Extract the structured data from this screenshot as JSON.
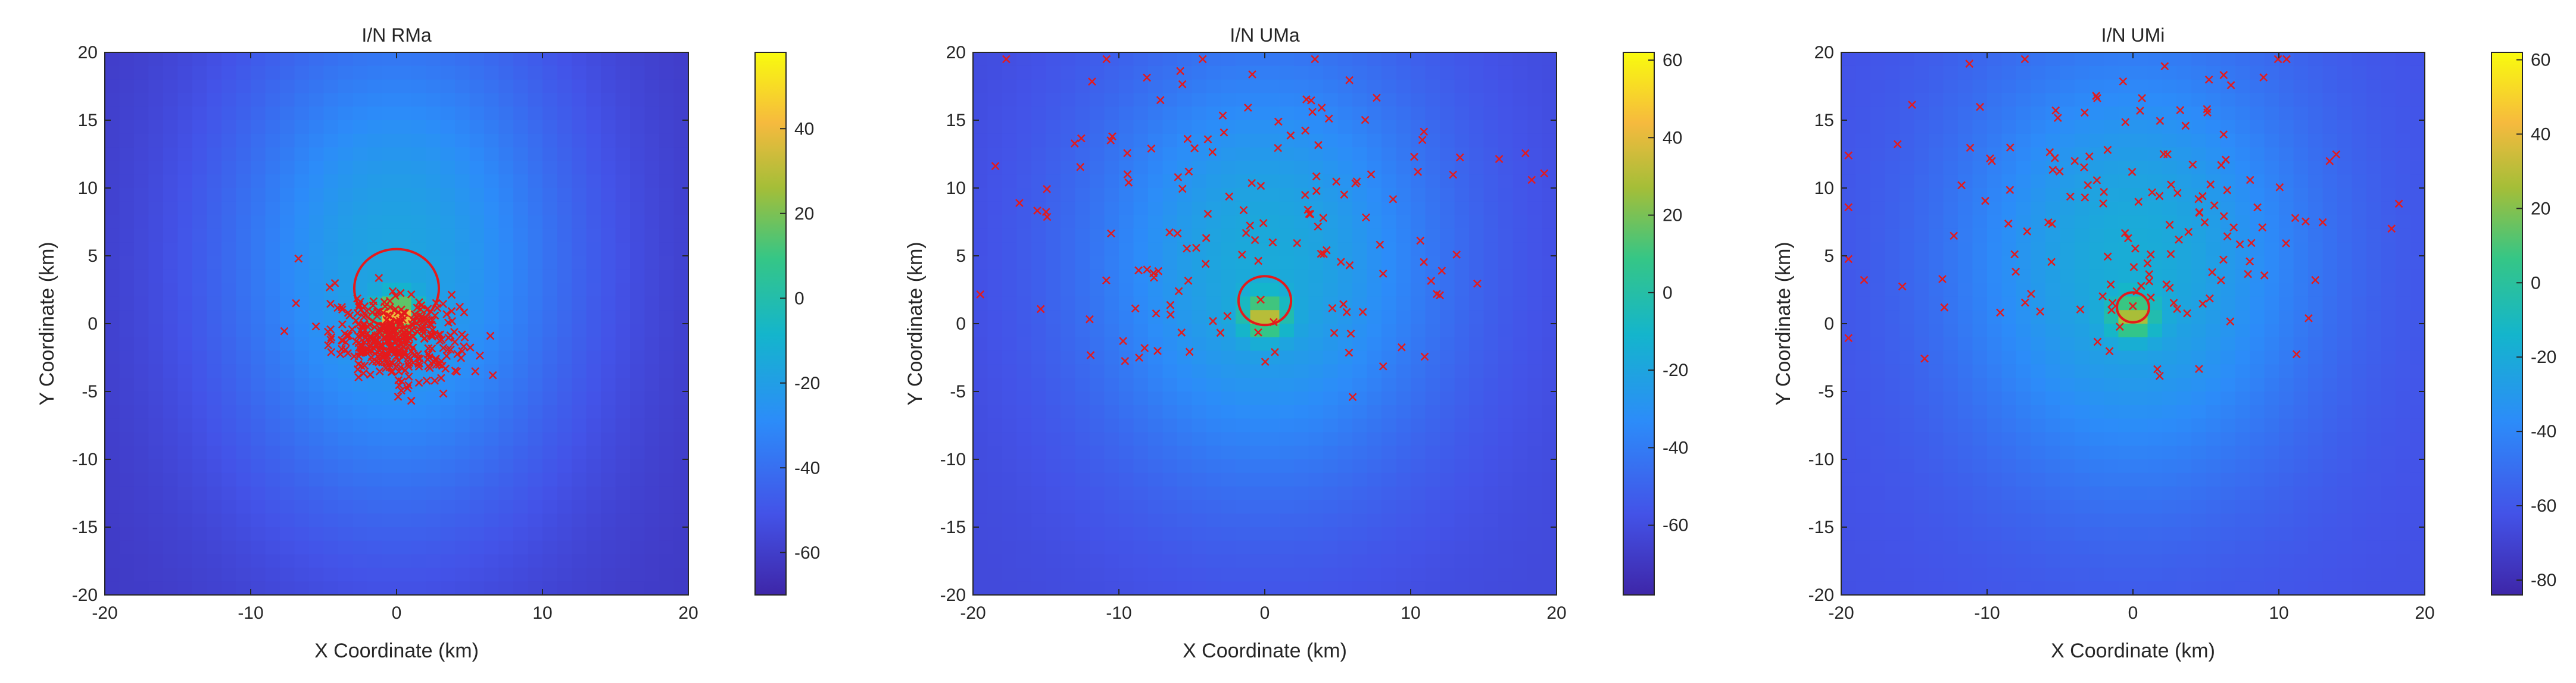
{
  "chart_data": [
    {
      "type": "heatmap",
      "title": "I/N RMa",
      "xlabel": "X Coordinate (km)",
      "ylabel": "Y Coordinate (km)",
      "xlim": [
        -20,
        20
      ],
      "ylim": [
        -20,
        20
      ],
      "x_ticks": [
        "-20",
        "-10",
        "0",
        "10",
        "20"
      ],
      "y_ticks": [
        "20",
        "15",
        "10",
        "5",
        "0",
        "-5",
        "-10",
        "-15",
        "-20"
      ],
      "colorbar": {
        "range": [
          -70,
          58
        ],
        "ticks": [
          "40",
          "20",
          "0",
          "-20",
          "-40",
          "-60"
        ]
      },
      "heatmap_model": {
        "background": -62,
        "peak": 55,
        "center": [
          0,
          0.5
        ],
        "spread_km": [
          9,
          14
        ],
        "bias_y": 4
      },
      "contour": {
        "color": "#e41a1c",
        "center": [
          0,
          2.6
        ],
        "radius_km": 2.9
      },
      "scatter": {
        "color": "#e41a1c",
        "marker": "x",
        "count": 340,
        "center": [
          0,
          -1.1
        ],
        "spread_km": [
          2.2,
          1.5
        ],
        "extra_outliers": 12
      }
    },
    {
      "type": "heatmap",
      "title": "I/N UMa",
      "xlabel": "X Coordinate (km)",
      "ylabel": "Y Coordinate (km)",
      "xlim": [
        -20,
        20
      ],
      "ylim": [
        -20,
        20
      ],
      "x_ticks": [
        "-20",
        "-10",
        "0",
        "10",
        "20"
      ],
      "y_ticks": [
        "20",
        "15",
        "10",
        "5",
        "0",
        "-5",
        "-10",
        "-15",
        "-20"
      ],
      "colorbar": {
        "range": [
          -78,
          62
        ],
        "ticks": [
          "60",
          "40",
          "20",
          "0",
          "-20",
          "-40",
          "-60"
        ]
      },
      "heatmap_model": {
        "background": -62,
        "peak": 45,
        "center": [
          0,
          0.5
        ],
        "spread_km": [
          9,
          12
        ],
        "bias_y": 4
      },
      "contour": {
        "color": "#e41a1c",
        "center": [
          0,
          1.7
        ],
        "radius_km": 1.8
      },
      "scatter": {
        "color": "#e41a1c",
        "marker": "x",
        "count": 150,
        "center": [
          0,
          7
        ],
        "spread_km": [
          8,
          6
        ],
        "extra_outliers": 0
      }
    },
    {
      "type": "heatmap",
      "title": "I/N UMi",
      "xlabel": "X Coordinate (km)",
      "ylabel": "Y Coordinate (km)",
      "xlim": [
        -20,
        20
      ],
      "ylim": [
        -20,
        20
      ],
      "x_ticks": [
        "-20",
        "-10",
        "0",
        "10",
        "20"
      ],
      "y_ticks": [
        "20",
        "15",
        "10",
        "5",
        "0",
        "-5",
        "-10",
        "-15",
        "-20"
      ],
      "colorbar": {
        "range": [
          -84,
          62
        ],
        "ticks": [
          "60",
          "40",
          "20",
          "0",
          "-20",
          "-40",
          "-60",
          "-80"
        ]
      },
      "heatmap_model": {
        "background": -64,
        "peak": 42,
        "center": [
          0,
          0.5
        ],
        "spread_km": [
          9,
          12
        ],
        "bias_y": 4
      },
      "contour": {
        "color": "#e41a1c",
        "center": [
          0,
          1.2
        ],
        "radius_km": 1.1
      },
      "scatter": {
        "color": "#e41a1c",
        "marker": "x",
        "count": 150,
        "center": [
          0,
          7
        ],
        "spread_km": [
          8,
          6
        ],
        "extra_outliers": 0
      }
    }
  ]
}
